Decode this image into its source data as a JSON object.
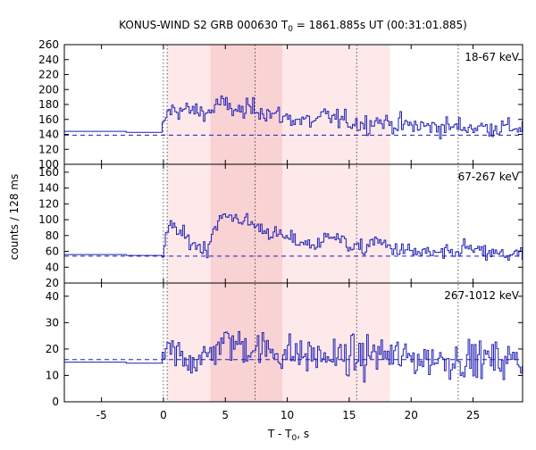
{
  "title_main": "KONUS-WIND S2 GRB 000630 T",
  "title_sub": "0",
  "title_rest": " = 1861.885s UT (00:31:01.885)",
  "ylabel": "counts / 128 ms",
  "xlabel_main": "T - T",
  "xlabel_sub": "0",
  "xlabel_rest": ", s",
  "colors": {
    "curve": "#1f1fb4",
    "background": "#1f1fb4",
    "shade_light": "#fde9ea",
    "shade_dark": "#f9d2d4"
  },
  "chart_data": {
    "type": "line",
    "x_axis": {
      "range": [
        -8,
        29
      ],
      "ticks": [
        -5,
        0,
        5,
        10,
        15,
        20,
        25
      ],
      "label": "T - T0, s"
    },
    "shaded_intervals": [
      {
        "start": 0.3,
        "end": 18.3,
        "shade": "light"
      },
      {
        "start": 3.8,
        "end": 9.6,
        "shade": "dark"
      }
    ],
    "vertical_dotted_lines": [
      0,
      0.3,
      7.4,
      15.6,
      23.8
    ],
    "panels": [
      {
        "label": "18-67 keV",
        "ylim": [
          100,
          260
        ],
        "yticks": [
          100,
          120,
          140,
          160,
          180,
          200,
          220,
          240,
          260
        ],
        "background_level": 139,
        "pre_level": 144,
        "baseline": 148,
        "noise": 9,
        "pulses": [
          {
            "t0": 0.0,
            "rise": 0.2,
            "decay": 1.0,
            "amp": 35
          },
          {
            "t0": 0.3,
            "rise": 1.5,
            "decay": 8.0,
            "amp": 35
          },
          {
            "t0": 3.8,
            "rise": 0.6,
            "decay": 1.5,
            "amp": 30
          },
          {
            "t0": 6.5,
            "rise": 0.5,
            "decay": 2.0,
            "amp": 18
          },
          {
            "t0": 12.5,
            "rise": 0.4,
            "decay": 1.2,
            "amp": 20
          },
          {
            "t0": 16.5,
            "rise": 0.4,
            "decay": 1.2,
            "amp": 12
          }
        ]
      },
      {
        "label": "67-267 keV",
        "ylim": [
          20,
          170
        ],
        "yticks": [
          20,
          40,
          60,
          80,
          100,
          120,
          140,
          160
        ],
        "background_level": 54,
        "pre_level": 56,
        "baseline": 55,
        "noise": 7,
        "pulses": [
          {
            "t0": -1.2,
            "rise": 0.4,
            "decay": 0.8,
            "amp": 12
          },
          {
            "t0": 0.0,
            "rise": 0.4,
            "decay": 1.6,
            "amp": 65
          },
          {
            "t0": 3.5,
            "rise": 1.2,
            "decay": 4.5,
            "amp": 90
          },
          {
            "t0": 12.8,
            "rise": 0.4,
            "decay": 1.0,
            "amp": 45
          },
          {
            "t0": 16.3,
            "rise": 0.4,
            "decay": 1.5,
            "amp": 25
          },
          {
            "t0": 23.7,
            "rise": 0.3,
            "decay": 1.0,
            "amp": 20
          }
        ]
      },
      {
        "label": "267-1012 keV",
        "ylim": [
          0,
          45
        ],
        "yticks": [
          0,
          10,
          20,
          30,
          40
        ],
        "background_level": 16,
        "pre_level": 15,
        "baseline": 16,
        "noise": 5,
        "pulses": [
          {
            "t0": 0.0,
            "rise": 0.3,
            "decay": 1.0,
            "amp": 5
          },
          {
            "t0": 3.5,
            "rise": 1.0,
            "decay": 4.0,
            "amp": 12
          },
          {
            "t0": 16.3,
            "rise": 0.4,
            "decay": 1.5,
            "amp": 4
          }
        ]
      }
    ]
  }
}
